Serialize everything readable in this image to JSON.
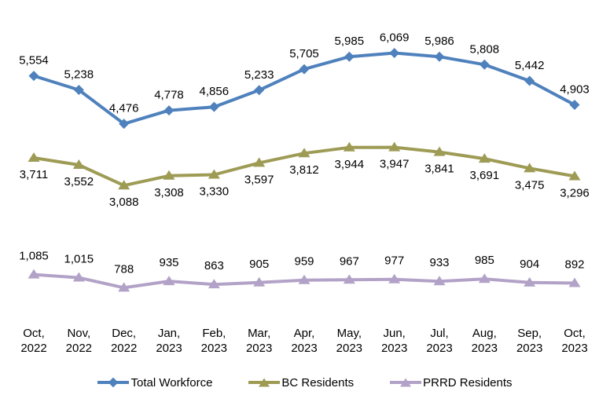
{
  "chart_data": {
    "type": "line",
    "categories": [
      [
        "Oct,",
        "2022"
      ],
      [
        "Nov,",
        "2022"
      ],
      [
        "Dec,",
        "2022"
      ],
      [
        "Jan,",
        "2023"
      ],
      [
        "Feb,",
        "2023"
      ],
      [
        "Mar,",
        "2023"
      ],
      [
        "Apr,",
        "2023"
      ],
      [
        "May,",
        "2023"
      ],
      [
        "Jun,",
        "2023"
      ],
      [
        "Jul,",
        "2023"
      ],
      [
        "Aug,",
        "2023"
      ],
      [
        "Sep,",
        "2023"
      ],
      [
        "Oct,",
        "2023"
      ]
    ],
    "series": [
      {
        "name": "Total Workforce",
        "marker": "diamond",
        "color": "#4F81BD",
        "label_position": "above",
        "values": [
          5554,
          5238,
          4476,
          4778,
          4856,
          5233,
          5705,
          5985,
          6069,
          5986,
          5808,
          5442,
          4903
        ]
      },
      {
        "name": "BC Residents",
        "marker": "triangle",
        "color": "#9E9B55",
        "label_position": "below",
        "values": [
          3711,
          3552,
          3088,
          3308,
          3330,
          3597,
          3812,
          3944,
          3947,
          3841,
          3691,
          3475,
          3296
        ]
      },
      {
        "name": "PRRD Residents",
        "marker": "triangle",
        "color": "#B3A2C7",
        "label_position": "above",
        "values": [
          1085,
          1015,
          788,
          935,
          863,
          905,
          959,
          967,
          977,
          933,
          985,
          904,
          892
        ]
      }
    ],
    "title": "",
    "xlabel": "",
    "ylabel": "",
    "ylim": [
      0,
      6500
    ],
    "grid": false,
    "axes_visible": false,
    "legend_position": "bottom",
    "data_labels": true,
    "label_color": "#000000",
    "number_format": "thousands-comma"
  }
}
